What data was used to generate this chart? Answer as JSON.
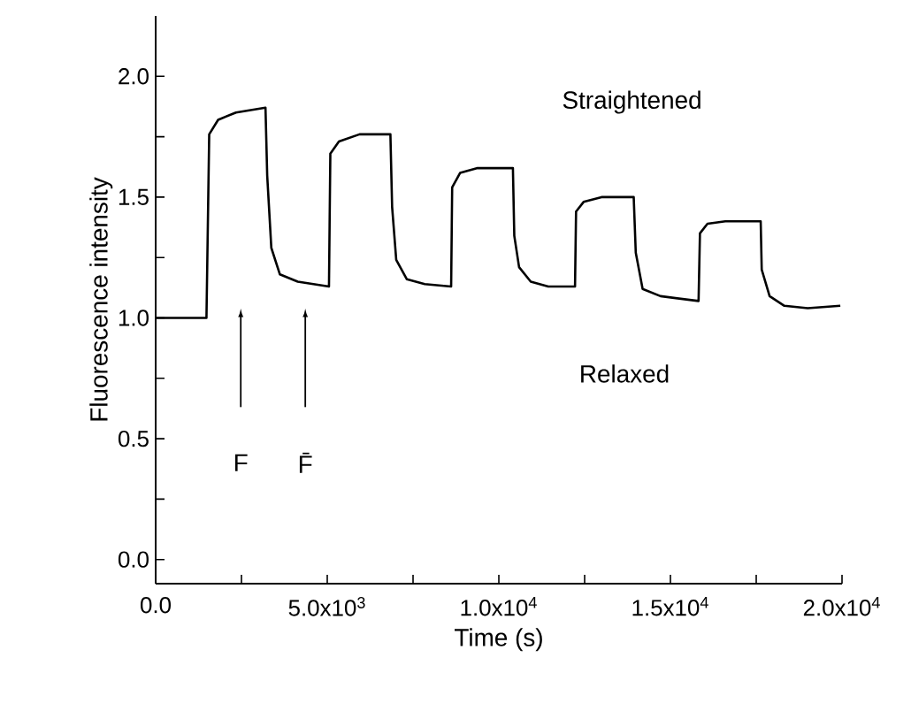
{
  "chart_data": {
    "type": "line",
    "xlabel": "Time (s)",
    "ylabel": "Fluorescence intensity",
    "xlim": [
      0,
      20000
    ],
    "ylim": [
      -0.1,
      2.25
    ],
    "xticks": [
      {
        "value": 0,
        "label": "0.0"
      },
      {
        "value": 2500,
        "label": null
      },
      {
        "value": 5000,
        "label": "5.0x10$^{3}$"
      },
      {
        "value": 7500,
        "label": null
      },
      {
        "value": 10000,
        "label": "1.0x10$^{4}$"
      },
      {
        "value": 12500,
        "label": null
      },
      {
        "value": 15000,
        "label": "1.5x10$^{4}$"
      },
      {
        "value": 17500,
        "label": null
      },
      {
        "value": 20000,
        "label": "2.0x10$^{4}$"
      }
    ],
    "yticks": [
      {
        "value": 0,
        "label": "0.0"
      },
      {
        "value": 0.25,
        "label": null
      },
      {
        "value": 0.5,
        "label": "0.5"
      },
      {
        "value": 0.75,
        "label": null
      },
      {
        "value": 1.0,
        "label": "1.0"
      },
      {
        "value": 1.25,
        "label": null
      },
      {
        "value": 1.5,
        "label": "1.5"
      },
      {
        "value": 1.75,
        "label": null
      },
      {
        "value": 2.0,
        "label": "2.0"
      }
    ],
    "marker": "none",
    "line_style": "solid",
    "series": [
      {
        "color": "#000000",
        "x": [
          0,
          1480,
          1560,
          1820,
          2340,
          3200,
          3250,
          3370,
          3620,
          4140,
          5050,
          5090,
          5340,
          5940,
          6840,
          6890,
          7010,
          7320,
          7840,
          8610,
          8640,
          8870,
          9380,
          10410,
          10450,
          10590,
          10930,
          11440,
          12220,
          12250,
          12470,
          12990,
          13930,
          13990,
          14190,
          14710,
          15820,
          15860,
          16080,
          16600,
          17630,
          17660,
          17890,
          18320,
          19000,
          19950
        ],
        "values": [
          1.0,
          1.0,
          1.76,
          1.82,
          1.85,
          1.87,
          1.59,
          1.29,
          1.18,
          1.15,
          1.13,
          1.68,
          1.73,
          1.76,
          1.76,
          1.46,
          1.24,
          1.16,
          1.14,
          1.13,
          1.54,
          1.6,
          1.62,
          1.62,
          1.34,
          1.21,
          1.15,
          1.13,
          1.13,
          1.44,
          1.48,
          1.5,
          1.5,
          1.27,
          1.12,
          1.09,
          1.07,
          1.35,
          1.39,
          1.4,
          1.4,
          1.2,
          1.09,
          1.05,
          1.04,
          1.05
        ]
      }
    ],
    "annotations": [
      "Straightened",
      "Relaxed",
      "F",
      "F̄"
    ]
  }
}
